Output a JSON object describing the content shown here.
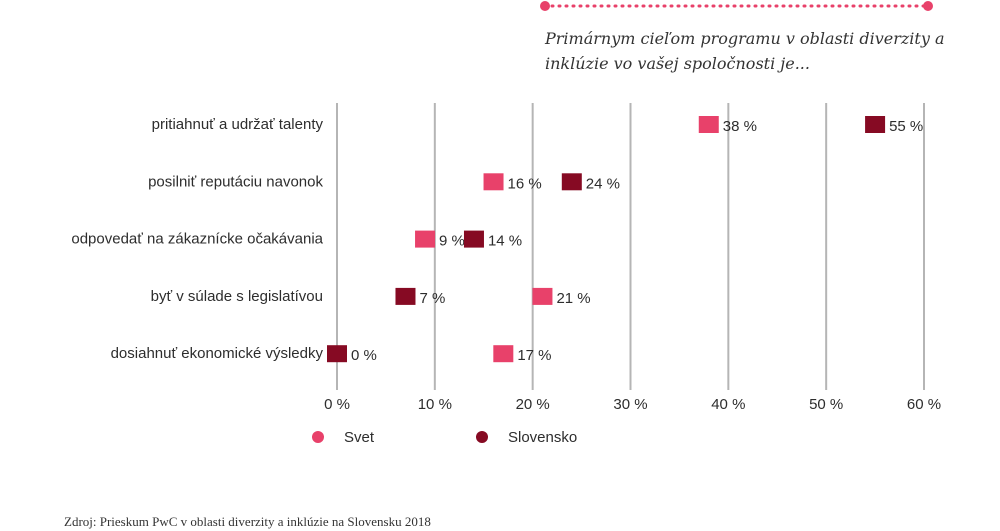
{
  "chart_data": {
    "type": "dot",
    "title": "Primárnym cieľom programu v oblasti diverzity a inklúzie vo vašej spoločnosti je...",
    "source": "Zdroj: Prieskum PwC v oblasti diverzity a inklúzie na Slovensku 2018",
    "categories": [
      "pritiahnuť a udržať talenty",
      "posilniť reputáciu navonok",
      "odpovedať na zákaznícke očakávania",
      "byť v súlade s legislatívou",
      "dosiahnuť ekonomické výsledky"
    ],
    "series": [
      {
        "name": "Svet",
        "color": "#e8416a",
        "values": [
          38,
          16,
          9,
          21,
          17
        ],
        "value_labels": [
          "38 %",
          "16 %",
          "9 %",
          "21 %",
          "17 %"
        ]
      },
      {
        "name": "Slovensko",
        "color": "#860a23",
        "values": [
          55,
          24,
          14,
          7,
          0
        ],
        "value_labels": [
          "55 %",
          "24 %",
          "14 %",
          "7 %",
          "0 %"
        ]
      }
    ],
    "xlim": [
      0,
      60
    ],
    "xticks": [
      {
        "value": 0,
        "label": "0 %"
      },
      {
        "value": 10,
        "label": "10 %"
      },
      {
        "value": 20,
        "label": "20 %"
      },
      {
        "value": 30,
        "label": "30 %"
      },
      {
        "value": 40,
        "label": "40 %"
      },
      {
        "value": 50,
        "label": "50 %"
      },
      {
        "value": 60,
        "label": "60 %"
      }
    ],
    "grid": true,
    "legend": "bottom"
  }
}
